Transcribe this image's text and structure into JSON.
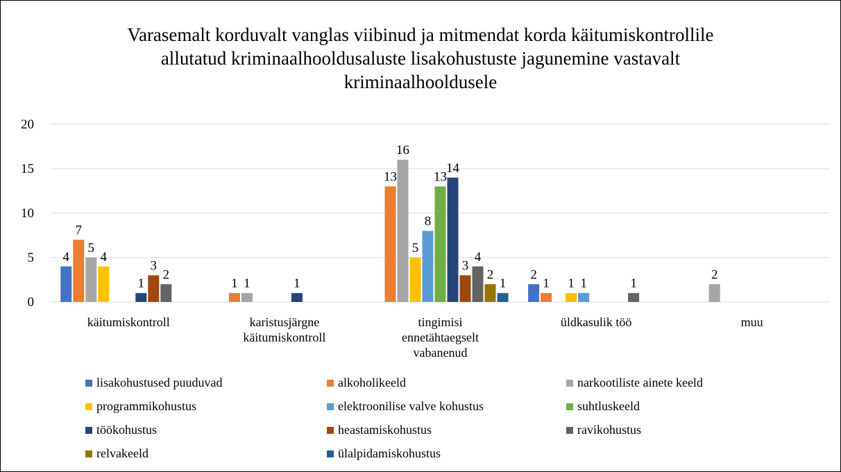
{
  "chart_data": {
    "type": "bar",
    "title": "Varasemalt korduvalt vanglas viibinud ja mitmendat korda käitumiskontrollile allutatud kriminaalhooldusaluste lisakohustuste jagunemine vastavalt kriminaalhooldusele",
    "categories": [
      "käitumiskontroll",
      "karistusjärgne käitumiskontroll",
      "tingimisi ennetähtaegselt vabanenud",
      "üldkasulik töö",
      "muu"
    ],
    "series": [
      {
        "name": "lisakohustused puuduvad",
        "color": "#4472c4",
        "values": [
          4,
          0,
          0,
          2,
          0
        ]
      },
      {
        "name": "alkoholikeeld",
        "color": "#ed7d31",
        "values": [
          7,
          1,
          13,
          1,
          0
        ]
      },
      {
        "name": "narkootiliste ainete keeld",
        "color": "#a5a5a5",
        "values": [
          5,
          1,
          16,
          0,
          2
        ]
      },
      {
        "name": "programmikohustus",
        "color": "#ffc000",
        "values": [
          4,
          0,
          5,
          1,
          0
        ]
      },
      {
        "name": "elektroonilise valve kohustus",
        "color": "#5b9bd5",
        "values": [
          0,
          0,
          8,
          1,
          0
        ]
      },
      {
        "name": "suhtluskeeld",
        "color": "#70ad47",
        "values": [
          0,
          0,
          13,
          0,
          0
        ]
      },
      {
        "name": "töökohustus",
        "color": "#264478",
        "values": [
          1,
          1,
          14,
          0,
          0
        ]
      },
      {
        "name": "heastamiskohustus",
        "color": "#9e480e",
        "values": [
          3,
          0,
          3,
          0,
          0
        ]
      },
      {
        "name": "ravikohustus",
        "color": "#636363",
        "values": [
          2,
          0,
          4,
          1,
          0
        ]
      },
      {
        "name": "relvakeeld",
        "color": "#997300",
        "values": [
          0,
          0,
          2,
          0,
          0
        ]
      },
      {
        "name": "ülalpidamiskohustus",
        "color": "#255e91",
        "values": [
          0,
          0,
          1,
          0,
          0
        ]
      }
    ],
    "ylim": [
      0,
      20
    ],
    "yticks": [
      0,
      5,
      10,
      15,
      20
    ],
    "grid": true,
    "legend": "bottom"
  }
}
